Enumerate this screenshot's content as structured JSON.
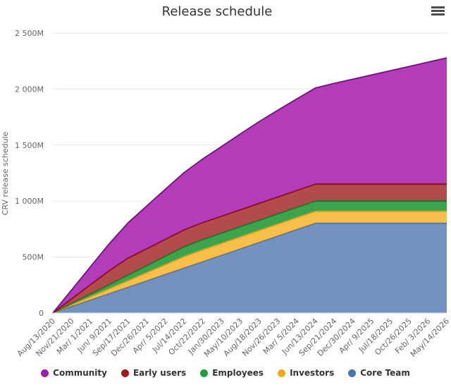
{
  "chart": {
    "title": "Release schedule",
    "background": "#ffffff",
    "grid_color": "#e6e6e6",
    "axis_line_color": "#ccd6eb",
    "label_color": "#666666",
    "title_color": "#333333",
    "menu_icon_color": "#4d4d4d"
  },
  "chart_data": {
    "type": "area",
    "stacked": true,
    "title": "Release schedule",
    "xlabel": "",
    "ylabel": "CRV release schedule",
    "unit": "M (millions of CRV tokens)",
    "ylim": [
      0,
      2500
    ],
    "grid": true,
    "legend_position": "bottom",
    "yticks": [
      {
        "value": 0,
        "label": "0"
      },
      {
        "value": 500,
        "label": "500M"
      },
      {
        "value": 1000,
        "label": "1 000M"
      },
      {
        "value": 1500,
        "label": "1 500M"
      },
      {
        "value": 2000,
        "label": "2 000M"
      },
      {
        "value": 2500,
        "label": "2 500M"
      }
    ],
    "categories": [
      "Aug/13/2020",
      "Nov/21/2020",
      "Mar/ 1/2021",
      "Jun/ 9/2021",
      "Sep/17/2021",
      "Dec/26/2021",
      "Apr/ 5/2022",
      "Jul/14/2022",
      "Oct/22/2022",
      "Jan/30/2023",
      "May/10/2023",
      "Aug/18/2023",
      "Nov/26/2023",
      "Mar/ 5/2024",
      "Jun/13/2024",
      "Sep/21/2024",
      "Dec/30/2024",
      "Apr/ 9/2025",
      "Jul/18/2025",
      "Oct/26/2025",
      "Feb/ 3/2026",
      "May/14/2026"
    ],
    "stack_order": [
      "Core Team",
      "Investors",
      "Employees",
      "Early users",
      "Community"
    ],
    "series": [
      {
        "name": "Community",
        "color": "#9e1ca8",
        "line": "#7d0b87",
        "fill": "#b33db9",
        "values": [
          0,
          80,
          160,
          240,
          315,
          382,
          448,
          512,
          570,
          624,
          678,
          730,
          775,
          818,
          860,
          900,
          938,
          976,
          1014,
          1052,
          1090,
          1128
        ]
      },
      {
        "name": "Early users",
        "color": "#a31818",
        "line": "#8c0f12",
        "fill": "#b24c4c",
        "values": [
          0,
          41.4,
          82.7,
          124.1,
          151,
          151,
          151,
          151,
          151,
          151,
          151,
          151,
          151,
          151,
          151,
          151,
          151,
          151,
          151,
          151,
          151,
          151
        ]
      },
      {
        "name": "Employees",
        "color": "#1f9d3f",
        "line": "#157a2b",
        "fill": "#3ba44c",
        "values": [
          0,
          12.5,
          24.9,
          37.4,
          49.9,
          62.3,
          74.8,
          87.3,
          91,
          91,
          91,
          91,
          91,
          91,
          91,
          91,
          91,
          91,
          91,
          91,
          91,
          91
        ]
      },
      {
        "name": "Investors",
        "color": "#f2a81d",
        "line": "#e39413",
        "fill": "#f8c04a",
        "values": [
          0,
          14.8,
          29.6,
          44.4,
          59.2,
          74,
          88.8,
          103.6,
          108,
          108,
          108,
          108,
          108,
          108,
          108,
          108,
          108,
          108,
          108,
          108,
          108,
          108
        ]
      },
      {
        "name": "Core Team",
        "color": "#4a74ad",
        "line": "#5878a8",
        "fill": "#7392c0",
        "values": [
          0,
          57.2,
          114.4,
          171.6,
          228.9,
          286.1,
          343.3,
          400.5,
          457.7,
          514.9,
          572.1,
          629.4,
          686.6,
          743.8,
          801,
          801,
          801,
          801,
          801,
          801,
          801,
          801
        ]
      }
    ]
  }
}
